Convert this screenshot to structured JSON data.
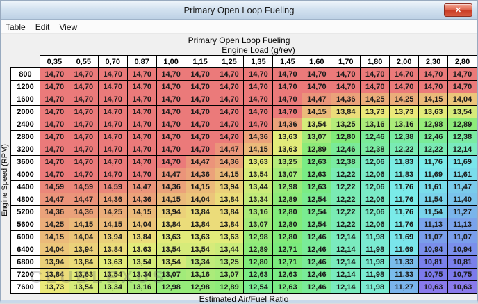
{
  "window": {
    "title": "Primary Open Loop Fueling",
    "close_glyph": "✕"
  },
  "menu": {
    "items": [
      "Table",
      "Edit",
      "View"
    ]
  },
  "watermark": "CLUBLEXUS",
  "table": {
    "title": "Primary Open Loop Fueling",
    "x_axis_label": "Engine Load (g/rev)",
    "y_axis_label": "Engine Speed (RPM)",
    "footer_label": "Estimated Air/Fuel Ratio",
    "columns": [
      "0,35",
      "0,55",
      "0,70",
      "0,87",
      "1,00",
      "1,15",
      "1,25",
      "1,35",
      "1,45",
      "1,60",
      "1,70",
      "1,80",
      "2,00",
      "2,30",
      "2,80"
    ],
    "rows": [
      {
        "rpm": "800",
        "values": [
          "14,70",
          "14,70",
          "14,70",
          "14,70",
          "14,70",
          "14,70",
          "14,70",
          "14,70",
          "14,70",
          "14,70",
          "14,70",
          "14,70",
          "14,70",
          "14,70",
          "14,70"
        ]
      },
      {
        "rpm": "1200",
        "values": [
          "14,70",
          "14,70",
          "14,70",
          "14,70",
          "14,70",
          "14,70",
          "14,70",
          "14,70",
          "14,70",
          "14,70",
          "14,70",
          "14,70",
          "14,70",
          "14,70",
          "14,70"
        ]
      },
      {
        "rpm": "1600",
        "values": [
          "14,70",
          "14,70",
          "14,70",
          "14,70",
          "14,70",
          "14,70",
          "14,70",
          "14,70",
          "14,70",
          "14,47",
          "14,36",
          "14,25",
          "14,25",
          "14,15",
          "14,04"
        ]
      },
      {
        "rpm": "2000",
        "values": [
          "14,70",
          "14,70",
          "14,70",
          "14,70",
          "14,70",
          "14,70",
          "14,70",
          "14,70",
          "14,70",
          "14,15",
          "13,84",
          "13,73",
          "13,73",
          "13,63",
          "13,54"
        ]
      },
      {
        "rpm": "2400",
        "values": [
          "14,70",
          "14,70",
          "14,70",
          "14,70",
          "14,70",
          "14,70",
          "14,70",
          "14,70",
          "14,36",
          "13,54",
          "13,25",
          "13,16",
          "13,16",
          "12,98",
          "12,89"
        ]
      },
      {
        "rpm": "2800",
        "values": [
          "14,70",
          "14,70",
          "14,70",
          "14,70",
          "14,70",
          "14,70",
          "14,70",
          "14,36",
          "13,63",
          "13,07",
          "12,80",
          "12,46",
          "12,38",
          "12,46",
          "12,38"
        ]
      },
      {
        "rpm": "3200",
        "values": [
          "14,70",
          "14,70",
          "14,70",
          "14,70",
          "14,70",
          "14,70",
          "14,47",
          "14,15",
          "13,63",
          "12,89",
          "12,46",
          "12,38",
          "12,22",
          "12,22",
          "12,14"
        ]
      },
      {
        "rpm": "3600",
        "values": [
          "14,70",
          "14,70",
          "14,70",
          "14,70",
          "14,70",
          "14,47",
          "14,36",
          "13,63",
          "13,25",
          "12,63",
          "12,38",
          "12,06",
          "11,83",
          "11,76",
          "11,69"
        ]
      },
      {
        "rpm": "4000",
        "values": [
          "14,70",
          "14,70",
          "14,70",
          "14,70",
          "14,47",
          "14,36",
          "14,15",
          "13,54",
          "13,07",
          "12,63",
          "12,22",
          "12,06",
          "11,83",
          "11,69",
          "11,61"
        ]
      },
      {
        "rpm": "4400",
        "values": [
          "14,59",
          "14,59",
          "14,59",
          "14,47",
          "14,36",
          "14,15",
          "13,94",
          "13,44",
          "12,98",
          "12,63",
          "12,22",
          "12,06",
          "11,76",
          "11,61",
          "11,47"
        ]
      },
      {
        "rpm": "4800",
        "values": [
          "14,47",
          "14,47",
          "14,36",
          "14,36",
          "14,15",
          "14,04",
          "13,84",
          "13,34",
          "12,89",
          "12,54",
          "12,22",
          "12,06",
          "11,76",
          "11,54",
          "11,40"
        ]
      },
      {
        "rpm": "5200",
        "values": [
          "14,36",
          "14,36",
          "14,25",
          "14,15",
          "13,94",
          "13,84",
          "13,84",
          "13,16",
          "12,80",
          "12,54",
          "12,22",
          "12,06",
          "11,76",
          "11,54",
          "11,27"
        ]
      },
      {
        "rpm": "5600",
        "values": [
          "14,25",
          "14,15",
          "14,15",
          "14,04",
          "13,84",
          "13,84",
          "13,84",
          "13,07",
          "12,80",
          "12,54",
          "12,22",
          "12,06",
          "11,76",
          "11,13",
          "11,13"
        ]
      },
      {
        "rpm": "6000",
        "values": [
          "14,15",
          "14,04",
          "13,94",
          "13,84",
          "13,63",
          "13,63",
          "13,63",
          "12,98",
          "12,80",
          "12,46",
          "12,14",
          "11,98",
          "11,69",
          "11,07",
          "11,07"
        ]
      },
      {
        "rpm": "6400",
        "values": [
          "14,04",
          "13,94",
          "13,84",
          "13,63",
          "13,54",
          "13,54",
          "13,44",
          "12,89",
          "12,71",
          "12,46",
          "12,14",
          "11,98",
          "11,69",
          "10,94",
          "10,94"
        ]
      },
      {
        "rpm": "6800",
        "values": [
          "13,94",
          "13,84",
          "13,63",
          "13,54",
          "13,54",
          "13,34",
          "13,25",
          "12,80",
          "12,71",
          "12,46",
          "12,14",
          "11,98",
          "11,33",
          "10,81",
          "10,81"
        ]
      },
      {
        "rpm": "7200",
        "values": [
          "13,84",
          "13,63",
          "13,54",
          "13,34",
          "13,07",
          "13,16",
          "13,07",
          "12,63",
          "12,63",
          "12,46",
          "12,14",
          "11,98",
          "11,33",
          "10,75",
          "10,75"
        ]
      },
      {
        "rpm": "7600",
        "values": [
          "13,73",
          "13,54",
          "13,34",
          "13,16",
          "12,98",
          "12,98",
          "12,89",
          "12,54",
          "12,63",
          "12,46",
          "12,14",
          "11,98",
          "11,27",
          "10,63",
          "10,63"
        ]
      }
    ],
    "color_scale": {
      "max": 14.7,
      "min": 10.63,
      "max_color": "#f26d6d",
      "min_color": "#a78ff2",
      "hue_span": 248,
      "saturation": 74,
      "lightness": 70
    }
  }
}
